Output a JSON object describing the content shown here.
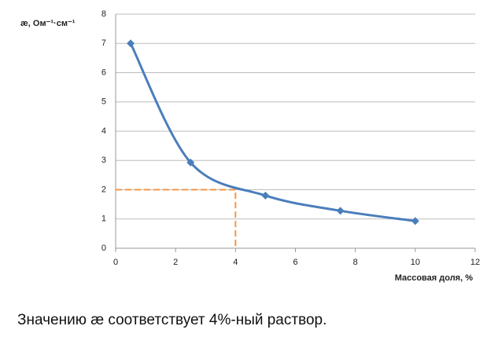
{
  "chart_data": {
    "type": "line",
    "ylabel": "æ, Ом⁻¹·см⁻¹",
    "xlabel": "Массовая доля, %",
    "x": [
      0.5,
      2.5,
      5,
      7.5,
      10
    ],
    "series": [
      {
        "color": "#4a7ebb",
        "values": [
          7,
          2.93,
          1.8,
          1.28,
          0.93
        ]
      }
    ],
    "xlim": [
      0,
      12
    ],
    "ylim": [
      0,
      8
    ],
    "xticks": [
      0,
      2,
      4,
      6,
      8,
      10,
      12
    ],
    "yticks": [
      0,
      1,
      2,
      3,
      4,
      5,
      6,
      7,
      8
    ],
    "grid": true,
    "guide": {
      "x": 4,
      "y": 2,
      "color": "#f79646"
    }
  },
  "caption": "Значению æ соответствует 4%-ный раствор."
}
